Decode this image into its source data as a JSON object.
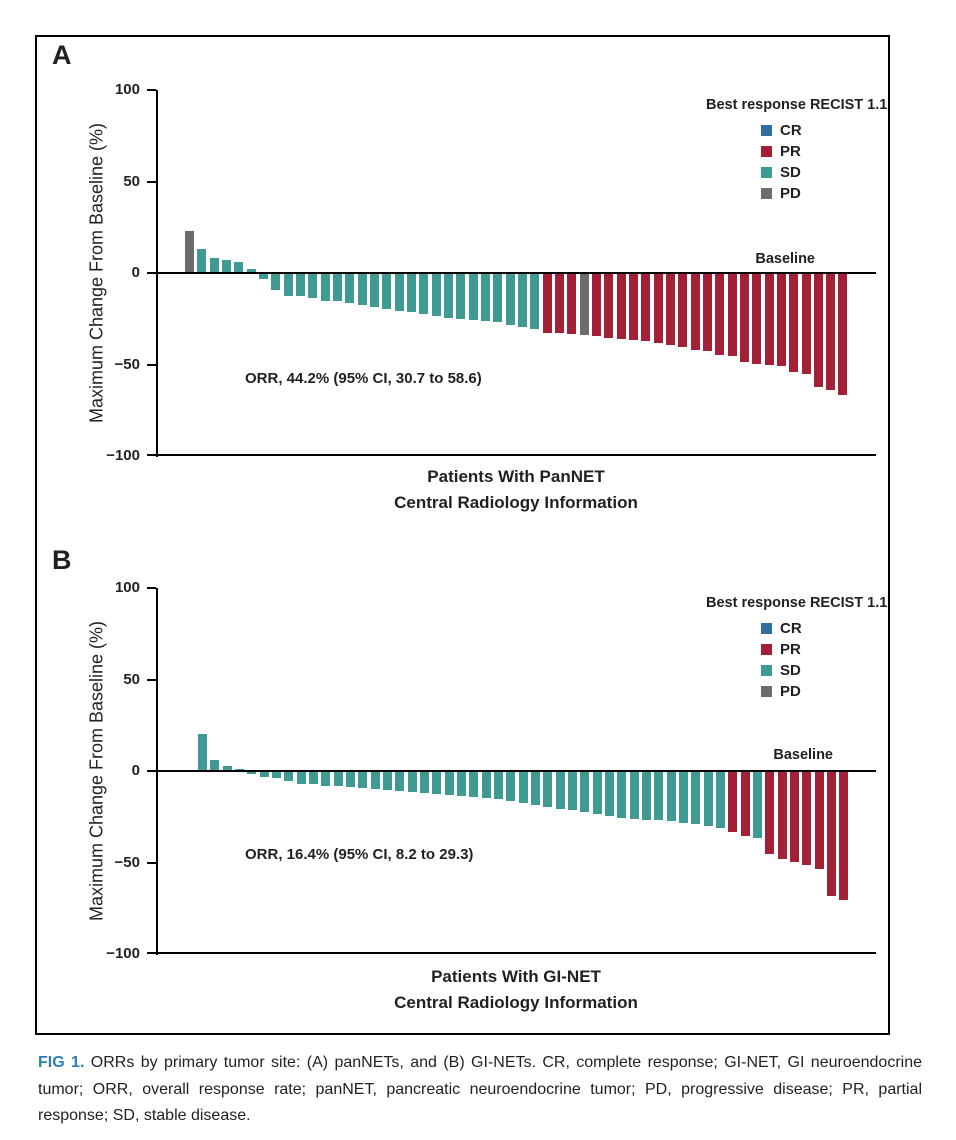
{
  "colors": {
    "CR": "#2E6F9F",
    "PR": "#A32036",
    "SD": "#3E9A93",
    "PD": "#6B6C6E",
    "caption_accent": "#2E7DB2"
  },
  "caption": {
    "label": "FIG 1.",
    "text": "ORRs by primary tumor site: (A) panNETs, and (B) GI-NETs. CR, complete response; GI-NET, GI neuroendocrine tumor; ORR, overall response rate; panNET, pancreatic neuroendocrine tumor; PD, progressive disease; PR, partial response; SD, stable disease."
  },
  "chart_data": [
    {
      "type": "bar",
      "panel": "A",
      "ylabel": "Maximum Change From Baseline (%)",
      "xlabel_line1": "Patients With PanNET",
      "xlabel_line2": "Central Radiology Information",
      "ylim": [
        -100,
        100
      ],
      "yticks": [
        100,
        50,
        0,
        -50,
        -100
      ],
      "ytick_labels": [
        "100",
        "50",
        "0",
        "−50",
        "−100"
      ],
      "grid": "off",
      "legend_position": "upper right",
      "legend_title": "Best response RECIST 1.1",
      "legend_entries": [
        "CR",
        "PR",
        "SD",
        "PD"
      ],
      "baseline_label": "Baseline",
      "orr_annotation": "ORR, 44.2% (95% CI, 30.7 to 58.6)",
      "values": [
        23,
        13,
        8,
        7,
        6,
        2,
        -3,
        -9,
        -12,
        -12,
        -13,
        -15,
        -15,
        -16,
        -17,
        -18,
        -19,
        -20,
        -21,
        -22,
        -23,
        -24,
        -24.5,
        -25,
        -25.5,
        -26,
        -28,
        -29,
        -30,
        -32,
        -32.5,
        -33,
        -33.5,
        -34,
        -35,
        -35.5,
        -36,
        -36.5,
        -37.5,
        -39,
        -40,
        -41.5,
        -42,
        -44,
        -45,
        -48,
        -49,
        -49.5,
        -50,
        -53.5,
        -54.5,
        -62,
        -63.5,
        -66
      ],
      "responses": [
        "PD",
        "SD",
        "SD",
        "SD",
        "SD",
        "SD",
        "SD",
        "SD",
        "SD",
        "SD",
        "SD",
        "SD",
        "SD",
        "SD",
        "SD",
        "SD",
        "SD",
        "SD",
        "SD",
        "SD",
        "SD",
        "SD",
        "SD",
        "SD",
        "SD",
        "SD",
        "SD",
        "SD",
        "SD",
        "PR",
        "PR",
        "PR",
        "PD",
        "PR",
        "PR",
        "PR",
        "PR",
        "PR",
        "PR",
        "PR",
        "PR",
        "PR",
        "PR",
        "PR",
        "PR",
        "PR",
        "PR",
        "PR",
        "PR",
        "PR",
        "PR",
        "PR",
        "PR",
        "PR"
      ]
    },
    {
      "type": "bar",
      "panel": "B",
      "ylabel": "Maximum Change From Baseline (%)",
      "xlabel_line1": "Patients With GI-NET",
      "xlabel_line2": "Central Radiology Information",
      "ylim": [
        -100,
        100
      ],
      "yticks": [
        100,
        50,
        0,
        -50,
        -100
      ],
      "ytick_labels": [
        "100",
        "50",
        "0",
        "−50",
        "−100"
      ],
      "grid": "off",
      "legend_position": "upper right",
      "legend_title": "Best response RECIST 1.1",
      "legend_entries": [
        "CR",
        "PR",
        "SD",
        "PD"
      ],
      "baseline_label": "Baseline",
      "orr_annotation": "ORR, 16.4% (95% CI, 8.2 to 29.3)",
      "values": [
        20,
        6,
        3,
        1,
        -0.5,
        -2.5,
        -3.5,
        -5,
        -6.5,
        -6.5,
        -7.5,
        -7.5,
        -8,
        -9,
        -9.5,
        -10,
        -10.5,
        -11,
        -11.5,
        -12,
        -12.5,
        -13,
        -13.5,
        -14,
        -15,
        -16,
        -17,
        -18,
        -19,
        -20,
        -21,
        -22,
        -23,
        -24,
        -25,
        -25.5,
        -26,
        -26.5,
        -27,
        -28,
        -28.5,
        -29.5,
        -30.5,
        -33,
        -35,
        -36,
        -45,
        -47.5,
        -49,
        -51,
        -53,
        -67.5,
        -70
      ],
      "responses": [
        "SD",
        "SD",
        "SD",
        "SD",
        "SD",
        "SD",
        "SD",
        "SD",
        "SD",
        "SD",
        "SD",
        "SD",
        "SD",
        "SD",
        "SD",
        "SD",
        "SD",
        "SD",
        "SD",
        "SD",
        "SD",
        "SD",
        "SD",
        "SD",
        "SD",
        "SD",
        "SD",
        "SD",
        "SD",
        "SD",
        "SD",
        "SD",
        "SD",
        "SD",
        "SD",
        "SD",
        "SD",
        "SD",
        "SD",
        "SD",
        "SD",
        "SD",
        "SD",
        "PR",
        "PR",
        "SD",
        "PR",
        "PR",
        "PR",
        "PR",
        "PR",
        "PR",
        "PR"
      ]
    }
  ]
}
